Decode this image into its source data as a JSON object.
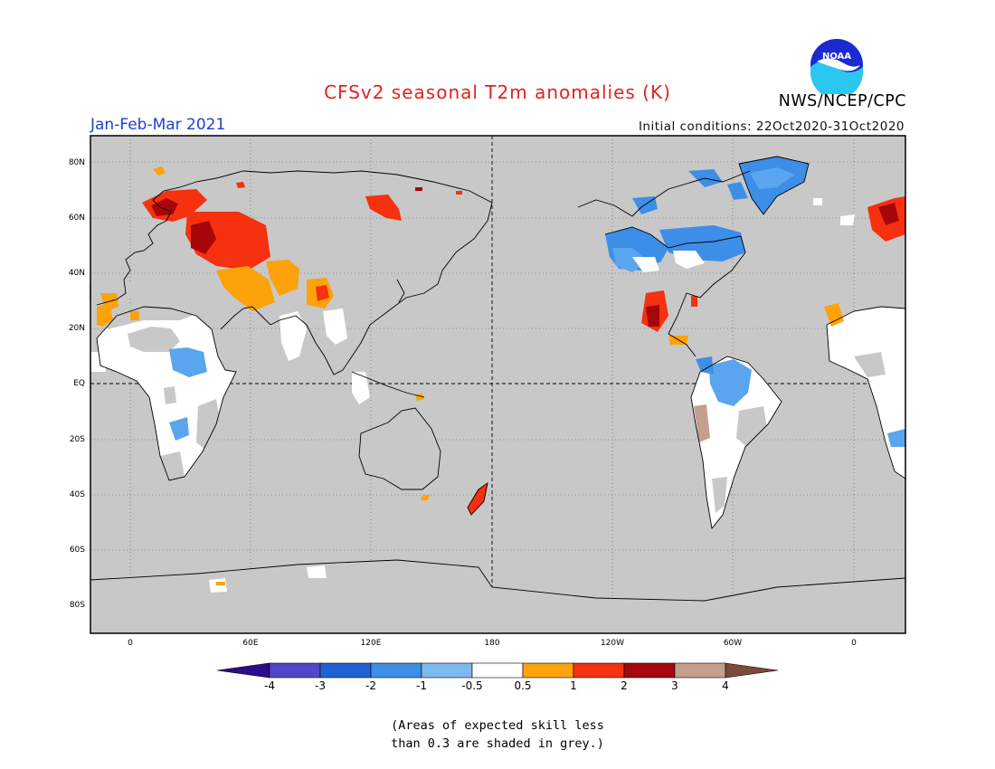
{
  "header": {
    "title": "CFSv2 seasonal T2m anomalies (K)",
    "season": "Jan-Feb-Mar 2021",
    "initial_conditions": "Initial conditions: 22Oct2020-31Oct2020",
    "agency": "NWS/NCEP/CPC",
    "logo_text": "NOAA"
  },
  "map": {
    "projection": "equirectangular, centered on 180",
    "land_default_color": "#c8c8c8",
    "ocean_color": "#c8c8c8",
    "lat_labels": [
      "80N",
      "60N",
      "40N",
      "20N",
      "EQ",
      "20S",
      "40S",
      "60S",
      "80S"
    ],
    "lon_labels": [
      "0",
      "60E",
      "120E",
      "180",
      "120W",
      "60W",
      "0"
    ]
  },
  "colorbar": {
    "colors": [
      "#2b0c8c",
      "#5445c9",
      "#1f62d3",
      "#3d8ee6",
      "#7eb9f0",
      "#ffffff",
      "#fca20a",
      "#f5310f",
      "#a6070a",
      "#c49f8e",
      "#7a4a3c"
    ],
    "tick_labels": [
      "-4",
      "-3",
      "-2",
      "-1",
      "-0.5",
      "0.5",
      "1",
      "2",
      "3",
      "4"
    ]
  },
  "note": {
    "line1": "(Areas of expected skill less",
    "line2": "than 0.3 are shaded in grey.)"
  }
}
